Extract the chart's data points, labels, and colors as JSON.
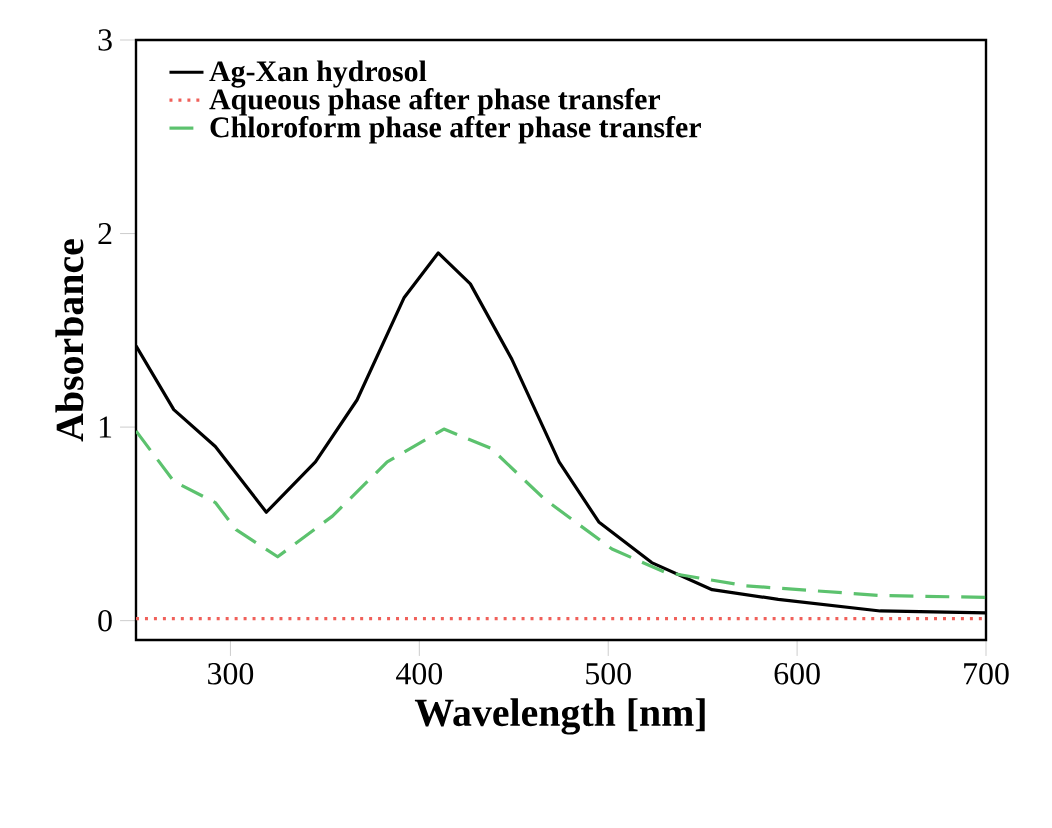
{
  "chart_data": {
    "type": "line",
    "xlabel": "Wavelength [nm]",
    "ylabel": "Absorbance",
    "xlim": [
      250,
      700
    ],
    "ylim": [
      -0.1,
      3
    ],
    "xticks": [
      300,
      400,
      500,
      600,
      700
    ],
    "yticks": [
      0,
      1,
      2,
      3
    ],
    "legend": "top left",
    "grid": false,
    "series": [
      {
        "name": "Ag-Xan hydrosol",
        "color": "#000000",
        "line_style": "solid",
        "x": [
          250,
          270,
          292,
          319,
          345,
          367,
          392,
          410,
          427,
          449,
          474,
          495,
          523,
          555,
          590,
          644,
          700
        ],
        "values": [
          1.42,
          1.09,
          0.9,
          0.56,
          0.82,
          1.14,
          1.67,
          1.9,
          1.74,
          1.35,
          0.82,
          0.51,
          0.3,
          0.16,
          0.11,
          0.05,
          0.04
        ]
      },
      {
        "name": "Aqueous phase after phase transfer",
        "color": "#f0605a",
        "line_style": "dotted",
        "x": [
          250,
          400,
          550,
          700
        ],
        "values": [
          0.01,
          0.01,
          0.01,
          0.01
        ]
      },
      {
        "name": "Chloroform phase after phase transfer",
        "color": "#5cc26e",
        "line_style": "dashed",
        "x": [
          250,
          270,
          292,
          303,
          325,
          354,
          383,
          413,
          438,
          466,
          502,
          530,
          573,
          644,
          700
        ],
        "values": [
          0.98,
          0.72,
          0.61,
          0.47,
          0.33,
          0.54,
          0.82,
          0.99,
          0.89,
          0.63,
          0.37,
          0.25,
          0.18,
          0.13,
          0.12
        ]
      }
    ]
  }
}
